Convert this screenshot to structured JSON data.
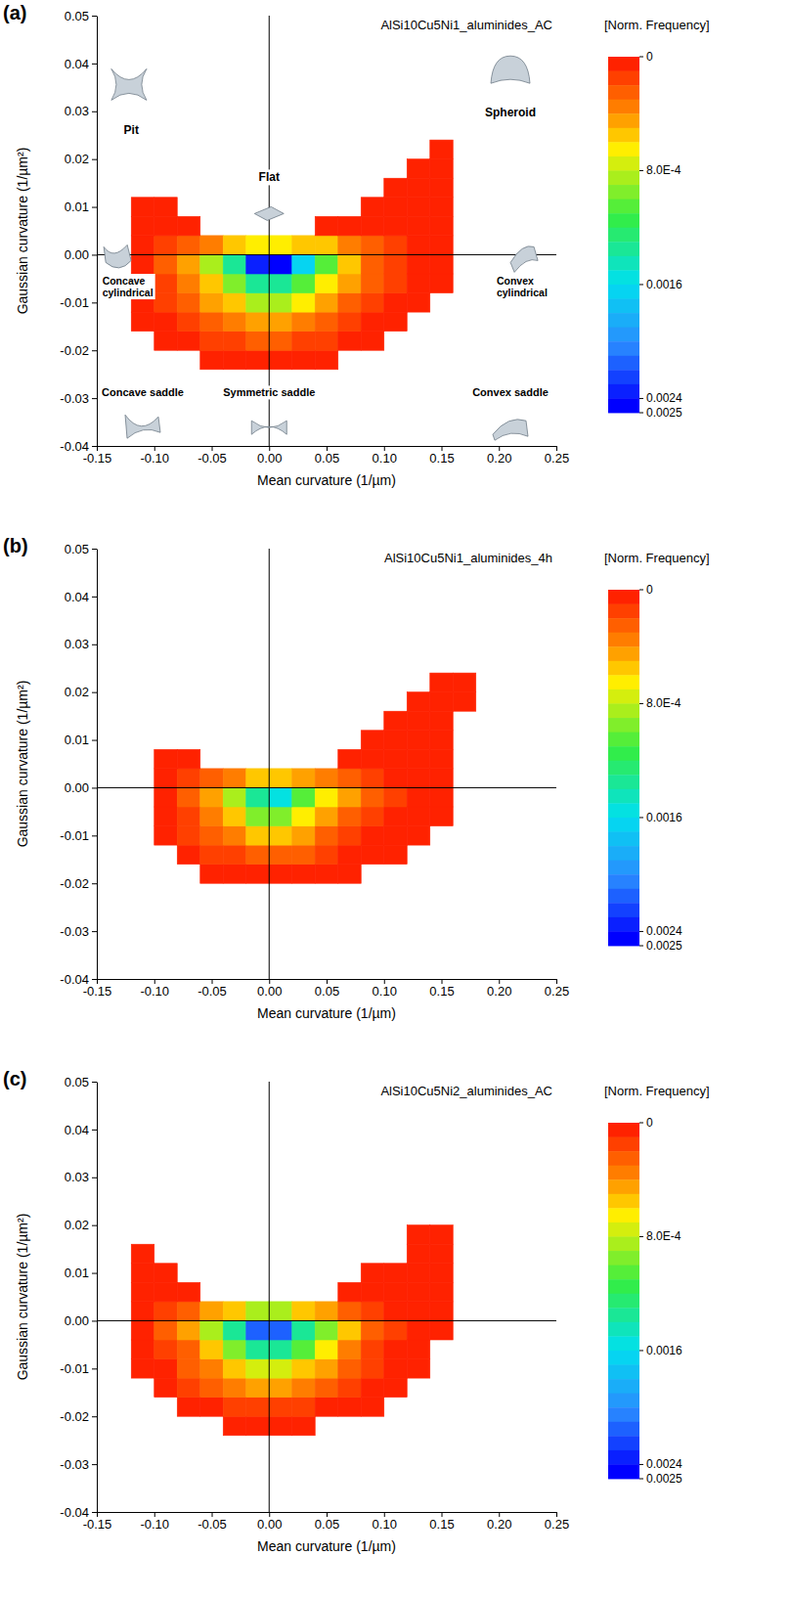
{
  "chart_data": [
    {
      "type": "heatmap",
      "label": "(a)",
      "title": "AlSi10Cu5Ni1_aluminides_AC",
      "x_label": "Mean curvature (1/µm)",
      "y_label": "Gaussian curvature (1/µm²)",
      "xlim": [
        -0.15,
        0.25
      ],
      "ylim": [
        -0.04,
        0.05
      ],
      "xticks": [
        -0.15,
        {
          "value": -0.1,
          "label": "-0.10"
        },
        -0.05,
        {
          "value": 0,
          "label": "0.00"
        },
        0.05,
        {
          "value": 0.1,
          "label": "0.10"
        },
        0.15,
        {
          "value": 0.2,
          "label": "0.20"
        },
        0.25
      ],
      "yticks": [
        -0.04,
        -0.03,
        -0.02,
        -0.01,
        {
          "value": 0,
          "label": "0.00"
        },
        0.01,
        0.02,
        0.03,
        0.04,
        0.05
      ],
      "vlines": [
        0
      ],
      "hlines": [
        0
      ],
      "x": [
        -0.11,
        -0.09,
        -0.07,
        -0.05,
        -0.03,
        -0.01,
        0.01,
        0.03,
        0.05,
        0.07,
        0.09,
        0.11,
        0.13,
        0.15,
        0.17,
        0.19
      ],
      "y": [
        -0.022,
        -0.018,
        -0.014,
        -0.01,
        -0.006,
        -0.002,
        0.002,
        0.006,
        0.01,
        0.014,
        0.018,
        0.022
      ],
      "z": [
        [
          0,
          0,
          0,
          2e-05,
          5e-05,
          8e-05,
          8e-05,
          5e-05,
          2e-05,
          0,
          0,
          0,
          0,
          0,
          0,
          0
        ],
        [
          0,
          1e-05,
          4e-05,
          0.0001,
          0.00015,
          0.0002,
          0.0002,
          0.00015,
          0.0001,
          5e-05,
          2e-05,
          0,
          0,
          0,
          0,
          0
        ],
        [
          1e-05,
          5e-05,
          0.00012,
          0.00025,
          0.00035,
          0.00045,
          0.00045,
          0.00038,
          0.00028,
          0.00015,
          7e-05,
          2e-05,
          0,
          0,
          0,
          0
        ],
        [
          3e-05,
          0.0001,
          0.00022,
          0.0004,
          0.0006,
          0.0008,
          0.0008,
          0.00065,
          0.00045,
          0.00028,
          0.00014,
          6e-05,
          2e-05,
          0,
          0,
          0
        ],
        [
          5e-05,
          0.00015,
          0.00032,
          0.0006,
          0.0009,
          0.0013,
          0.0013,
          0.001,
          0.0007,
          0.00042,
          0.0002,
          0.0001,
          4e-05,
          1e-05,
          0,
          0
        ],
        [
          6e-05,
          0.0002,
          0.0004,
          0.0008,
          0.0014,
          0.0024,
          0.0025,
          0.0016,
          0.001,
          0.0006,
          0.0003,
          0.00015,
          6e-05,
          2e-05,
          0,
          0
        ],
        [
          5e-05,
          0.00012,
          0.0002,
          0.00035,
          0.0005,
          0.0007,
          0.0007,
          0.0006,
          0.0005,
          0.00035,
          0.0002,
          0.00012,
          6e-05,
          2e-05,
          0,
          0
        ],
        [
          3e-05,
          4e-05,
          2e-05,
          0,
          0,
          0,
          0,
          0,
          1e-05,
          4e-05,
          6e-05,
          6e-05,
          4e-05,
          1e-05,
          0,
          0
        ],
        [
          1e-05,
          1e-05,
          0,
          0,
          0,
          0,
          0,
          0,
          0,
          0,
          2e-05,
          4e-05,
          4e-05,
          2e-05,
          0,
          0
        ],
        [
          0,
          0,
          0,
          0,
          0,
          0,
          0,
          0,
          0,
          0,
          0,
          1e-05,
          3e-05,
          2e-05,
          0,
          0
        ],
        [
          0,
          0,
          0,
          0,
          0,
          0,
          0,
          0,
          0,
          0,
          0,
          0,
          1e-05,
          2e-05,
          0,
          0
        ],
        [
          0,
          0,
          0,
          0,
          0,
          0,
          0,
          0,
          0,
          0,
          0,
          0,
          0,
          1e-05,
          0,
          0
        ]
      ],
      "colorbar": {
        "title": "[Norm. Frequency]",
        "range": [
          0,
          0.0025
        ],
        "ticks": [
          0,
          {
            "value": 0.0008,
            "label": "8.0E-4"
          },
          0.0016,
          0.0024,
          0.0025
        ]
      },
      "annotations": [
        "Pit",
        "Spheroid",
        "Flat",
        "Concave cylindrical",
        "Convex cylindrical",
        "Concave saddle",
        "Symmetric saddle",
        "Convex saddle"
      ]
    },
    {
      "type": "heatmap",
      "label": "(b)",
      "title": "AlSi10Cu5Ni1_aluminides_4h",
      "x_label": "Mean curvature (1/µm)",
      "y_label": "Gaussian curvature (1/µm²)",
      "xlim": [
        -0.15,
        0.25
      ],
      "ylim": [
        -0.04,
        0.05
      ],
      "xticks": [
        -0.15,
        {
          "value": -0.1,
          "label": "-0.10"
        },
        -0.05,
        {
          "value": 0,
          "label": "0.00"
        },
        0.05,
        {
          "value": 0.1,
          "label": "0.10"
        },
        0.15,
        {
          "value": 0.2,
          "label": "0.20"
        },
        0.25
      ],
      "yticks": [
        -0.04,
        -0.03,
        -0.02,
        -0.01,
        {
          "value": 0,
          "label": "0.00"
        },
        0.01,
        0.02,
        0.03,
        0.04,
        0.05
      ],
      "vlines": [
        0
      ],
      "hlines": [
        0
      ],
      "x": [
        -0.11,
        -0.09,
        -0.07,
        -0.05,
        -0.03,
        -0.01,
        0.01,
        0.03,
        0.05,
        0.07,
        0.09,
        0.11,
        0.13,
        0.15,
        0.17,
        0.19
      ],
      "y": [
        -0.022,
        -0.018,
        -0.014,
        -0.01,
        -0.006,
        -0.002,
        0.002,
        0.006,
        0.01,
        0.014,
        0.018,
        0.022
      ],
      "z": [
        [
          0,
          0,
          0,
          0,
          0,
          0,
          0,
          0,
          0,
          0,
          0,
          0,
          0,
          0,
          0,
          0
        ],
        [
          0,
          0,
          0,
          2e-05,
          5e-05,
          7e-05,
          7e-05,
          5e-05,
          3e-05,
          1e-05,
          0,
          0,
          0,
          0,
          0,
          0
        ],
        [
          0,
          0,
          4e-05,
          0.0001,
          0.00018,
          0.00025,
          0.00026,
          0.0002,
          0.00014,
          7e-05,
          3e-05,
          1e-05,
          0,
          0,
          0,
          0
        ],
        [
          0,
          2e-05,
          0.0001,
          0.00022,
          0.00038,
          0.0005,
          0.00052,
          0.00042,
          0.0003,
          0.00018,
          8e-05,
          3e-05,
          1e-05,
          0,
          0,
          0
        ],
        [
          0,
          4e-05,
          0.00016,
          0.00035,
          0.0006,
          0.0009,
          0.00095,
          0.0007,
          0.00048,
          0.00028,
          0.00013,
          6e-05,
          2e-05,
          1e-05,
          0,
          0
        ],
        [
          0,
          6e-05,
          0.0002,
          0.00045,
          0.0008,
          0.0014,
          0.0015,
          0.001,
          0.00065,
          0.0004,
          0.0002,
          0.0001,
          4e-05,
          2e-05,
          0,
          0
        ],
        [
          0,
          4e-05,
          0.0001,
          0.0002,
          0.00035,
          0.0005,
          0.00055,
          0.00045,
          0.00035,
          0.00025,
          0.00015,
          8e-05,
          4e-05,
          2e-05,
          0,
          0
        ],
        [
          0,
          2e-05,
          1e-05,
          0,
          0,
          0,
          0,
          0,
          0,
          2e-05,
          4e-05,
          5e-05,
          4e-05,
          2e-05,
          0,
          0
        ],
        [
          0,
          0,
          0,
          0,
          0,
          0,
          0,
          0,
          0,
          0,
          1e-05,
          3e-05,
          4e-05,
          2e-05,
          0,
          0
        ],
        [
          0,
          0,
          0,
          0,
          0,
          0,
          0,
          0,
          0,
          0,
          0,
          1e-05,
          3e-05,
          2e-05,
          0,
          0
        ],
        [
          0,
          0,
          0,
          0,
          0,
          0,
          0,
          0,
          0,
          0,
          0,
          0,
          1e-05,
          2e-05,
          1e-05,
          0
        ],
        [
          0,
          0,
          0,
          0,
          0,
          0,
          0,
          0,
          0,
          0,
          0,
          0,
          0,
          1e-05,
          1e-05,
          0
        ]
      ],
      "colorbar": {
        "title": "[Norm. Frequency]",
        "range": [
          0,
          0.0025
        ],
        "ticks": [
          0,
          {
            "value": 0.0008,
            "label": "8.0E-4"
          },
          0.0016,
          0.0024,
          0.0025
        ]
      }
    },
    {
      "type": "heatmap",
      "label": "(c)",
      "title": "AlSi10Cu5Ni2_aluminides_AC",
      "x_label": "Mean curvature (1/µm)",
      "y_label": "Gaussian curvature (1/µm²)",
      "xlim": [
        -0.15,
        0.25
      ],
      "ylim": [
        -0.04,
        0.05
      ],
      "xticks": [
        -0.15,
        {
          "value": -0.1,
          "label": "-0.10"
        },
        -0.05,
        {
          "value": 0,
          "label": "0.00"
        },
        0.05,
        {
          "value": 0.1,
          "label": "0.10"
        },
        0.15,
        {
          "value": 0.2,
          "label": "0.20"
        },
        0.25
      ],
      "yticks": [
        -0.04,
        -0.03,
        -0.02,
        -0.01,
        {
          "value": 0,
          "label": "0.00"
        },
        0.01,
        0.02,
        0.03,
        0.04,
        0.05
      ],
      "vlines": [
        0
      ],
      "hlines": [
        0
      ],
      "x": [
        -0.11,
        -0.09,
        -0.07,
        -0.05,
        -0.03,
        -0.01,
        0.01,
        0.03,
        0.05,
        0.07,
        0.09,
        0.11,
        0.13,
        0.15,
        0.17,
        0.19
      ],
      "y": [
        -0.022,
        -0.018,
        -0.014,
        -0.01,
        -0.006,
        -0.002,
        0.002,
        0.006,
        0.01,
        0.014,
        0.018,
        0.022
      ],
      "z": [
        [
          0,
          0,
          0,
          0,
          1e-05,
          2e-05,
          2e-05,
          1e-05,
          0,
          0,
          0,
          0,
          0,
          0,
          0,
          0
        ],
        [
          0,
          0,
          2e-05,
          6e-05,
          0.0001,
          0.00014,
          0.00014,
          0.0001,
          6e-05,
          2e-05,
          1e-05,
          0,
          0,
          0,
          0,
          0
        ],
        [
          0,
          3e-05,
          0.0001,
          0.0002,
          0.00032,
          0.0004,
          0.0004,
          0.00032,
          0.0002,
          0.0001,
          4e-05,
          1e-05,
          0,
          0,
          0,
          0
        ],
        [
          2e-05,
          8e-05,
          0.0002,
          0.00038,
          0.0006,
          0.00075,
          0.00075,
          0.0006,
          0.0004,
          0.00022,
          0.0001,
          4e-05,
          1e-05,
          0,
          0,
          0
        ],
        [
          5e-05,
          0.00014,
          0.0003,
          0.0006,
          0.00095,
          0.0013,
          0.0013,
          0.001,
          0.00065,
          0.00035,
          0.00016,
          7e-05,
          2e-05,
          0,
          0,
          0
        ],
        [
          7e-05,
          0.0002,
          0.0004,
          0.0008,
          0.0013,
          0.0021,
          0.0021,
          0.0014,
          0.0009,
          0.0005,
          0.00025,
          0.0001,
          4e-05,
          1e-05,
          0,
          0
        ],
        [
          6e-05,
          0.00014,
          0.00025,
          0.0004,
          0.0006,
          0.0008,
          0.0008,
          0.0006,
          0.00045,
          0.0003,
          0.00015,
          7e-05,
          3e-05,
          1e-05,
          0,
          0
        ],
        [
          4e-05,
          4e-05,
          2e-05,
          0,
          0,
          0,
          0,
          0,
          0,
          2e-05,
          4e-05,
          4e-05,
          2e-05,
          1e-05,
          0,
          0
        ],
        [
          2e-05,
          1e-05,
          0,
          0,
          0,
          0,
          0,
          0,
          0,
          0,
          1e-05,
          3e-05,
          3e-05,
          1e-05,
          0,
          0
        ],
        [
          1e-05,
          0,
          0,
          0,
          0,
          0,
          0,
          0,
          0,
          0,
          0,
          0,
          2e-05,
          1e-05,
          0,
          0
        ],
        [
          0,
          0,
          0,
          0,
          0,
          0,
          0,
          0,
          0,
          0,
          0,
          0,
          1e-05,
          1e-05,
          0,
          0
        ],
        [
          0,
          0,
          0,
          0,
          0,
          0,
          0,
          0,
          0,
          0,
          0,
          0,
          0,
          0,
          0,
          0
        ]
      ],
      "colorbar": {
        "title": "[Norm. Frequency]",
        "range": [
          0,
          0.0025
        ],
        "ticks": [
          0,
          {
            "value": 0.0008,
            "label": "8.0E-4"
          },
          0.0016,
          0.0024,
          0.0025
        ]
      }
    }
  ]
}
